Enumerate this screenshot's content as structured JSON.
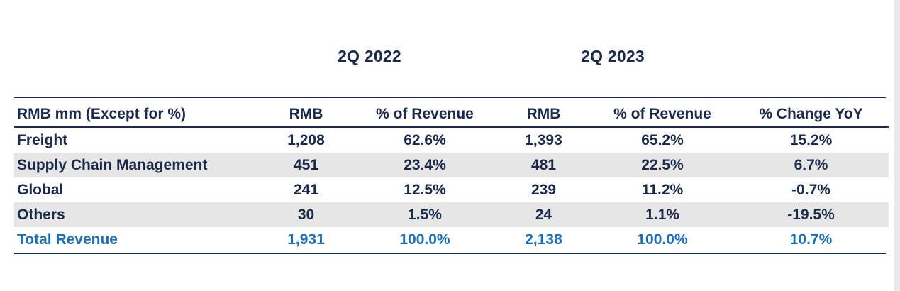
{
  "periods": {
    "first": "2Q 2022",
    "second": "2Q 2023"
  },
  "table": {
    "headers": [
      "RMB mm (Except for %)",
      "RMB",
      "% of Revenue",
      "RMB",
      "% of Revenue",
      "% Change YoY"
    ],
    "rows": [
      [
        "Freight",
        "1,208",
        "62.6%",
        "1,393",
        "65.2%",
        "15.2%"
      ],
      [
        "Supply Chain Management",
        "451",
        "23.4%",
        "481",
        "22.5%",
        "6.7%"
      ],
      [
        "Global",
        "241",
        "12.5%",
        "239",
        "11.2%",
        "-0.7%"
      ],
      [
        "Others",
        "30",
        "1.5%",
        "24",
        "1.1%",
        "-19.5%"
      ],
      [
        "Total Revenue",
        "1,931",
        "100.0%",
        "2,138",
        "100.0%",
        "10.7%"
      ]
    ]
  },
  "colors": {
    "text": "#1b2a4a",
    "total": "#1f6fb5",
    "shade": "#e6e6e6"
  }
}
